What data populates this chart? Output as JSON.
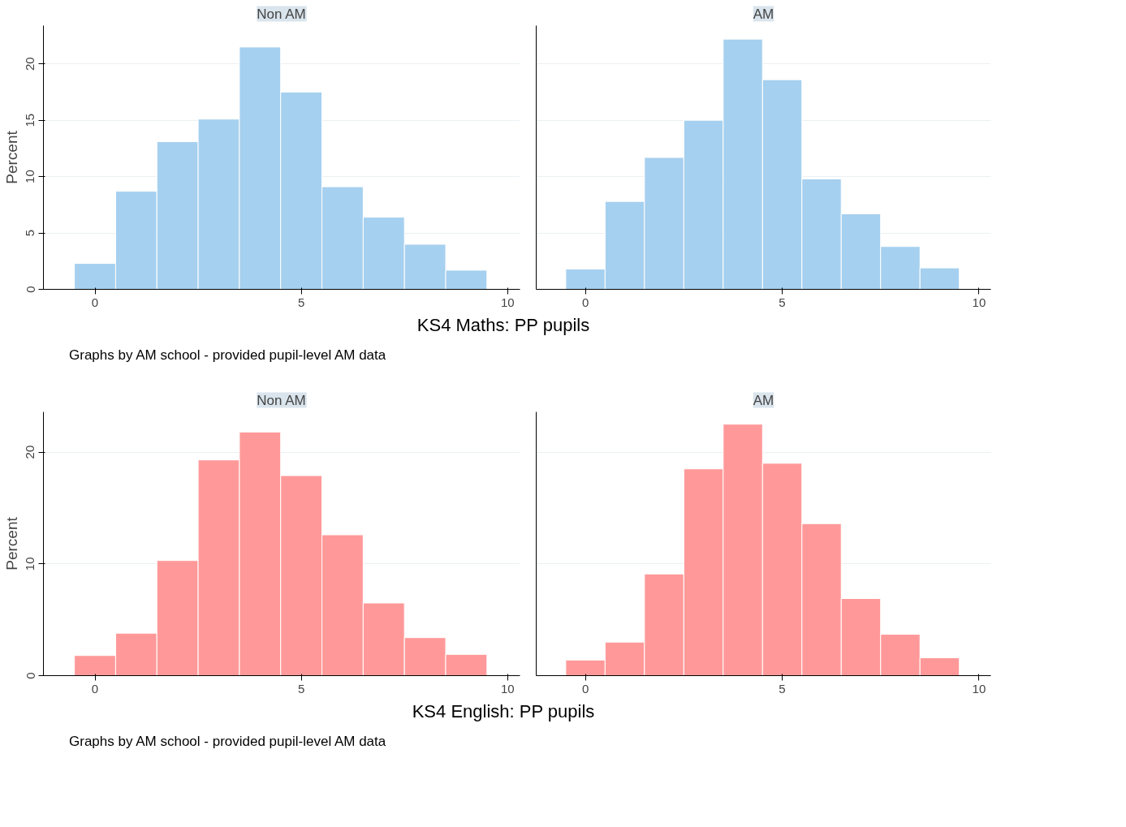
{
  "chart_data": [
    {
      "type": "histogram",
      "title": "Non AM",
      "ylabel": "Percent",
      "xlabel": "KS4 Maths: PP pupils",
      "annotations": [
        "Graphs by AM school - provided pupil-level AM data"
      ],
      "bins": [
        -0.5,
        0.5,
        1.5,
        2.5,
        3.5,
        4.5,
        5.5,
        6.5,
        7.5,
        8.5,
        9.5
      ],
      "values": [
        2.3,
        8.7,
        13.1,
        15.1,
        21.5,
        17.5,
        9.1,
        6.4,
        4.0,
        1.7
      ],
      "color": "#a6d0ef",
      "xlim": [
        -1.25,
        10.3
      ],
      "ylim": [
        0,
        23.4
      ],
      "xticks": [
        0,
        5,
        10
      ],
      "yticks": [
        0,
        5,
        10,
        15,
        20
      ],
      "grid": "y"
    },
    {
      "type": "histogram",
      "title": "AM",
      "bins": [
        -0.5,
        0.5,
        1.5,
        2.5,
        3.5,
        4.5,
        5.5,
        6.5,
        7.5,
        8.5,
        9.5
      ],
      "values": [
        1.8,
        7.8,
        11.7,
        15.0,
        22.2,
        18.6,
        9.8,
        6.7,
        3.8,
        1.9
      ],
      "color": "#a6d0ef",
      "xlim": [
        -1.25,
        10.3
      ],
      "ylim": [
        0,
        23.4
      ],
      "xticks": [
        0,
        5,
        10
      ],
      "yticks": [
        0,
        5,
        10,
        15,
        20
      ],
      "grid": "y",
      "tick_labels": "x"
    },
    {
      "type": "histogram",
      "title": "Non AM",
      "ylabel": "Percent",
      "xlabel": "KS4 English: PP pupils",
      "annotations": [
        "Graphs by AM school - provided pupil-level AM data"
      ],
      "bins": [
        -0.5,
        0.5,
        1.5,
        2.5,
        3.5,
        4.5,
        5.5,
        6.5,
        7.5,
        8.5,
        9.5
      ],
      "values": [
        1.8,
        3.8,
        10.3,
        19.3,
        21.8,
        17.9,
        12.6,
        6.5,
        3.4,
        1.9
      ],
      "color": "#ff9999",
      "xlim": [
        -1.25,
        10.3
      ],
      "ylim": [
        0,
        23.6
      ],
      "xticks": [
        0,
        5,
        10
      ],
      "yticks": [
        0,
        10,
        20
      ],
      "grid": "y"
    },
    {
      "type": "histogram",
      "title": "AM",
      "bins": [
        -0.5,
        0.5,
        1.5,
        2.5,
        3.5,
        4.5,
        5.5,
        6.5,
        7.5,
        8.5,
        9.5
      ],
      "values": [
        1.4,
        3.0,
        9.1,
        18.5,
        22.5,
        19.0,
        13.6,
        6.9,
        3.7,
        1.6
      ],
      "color": "#ff9999",
      "xlim": [
        -1.25,
        10.3
      ],
      "ylim": [
        0,
        23.6
      ],
      "xticks": [
        0,
        5,
        10
      ],
      "yticks": [
        0,
        10,
        20
      ],
      "grid": "y",
      "tick_labels": "x"
    }
  ]
}
